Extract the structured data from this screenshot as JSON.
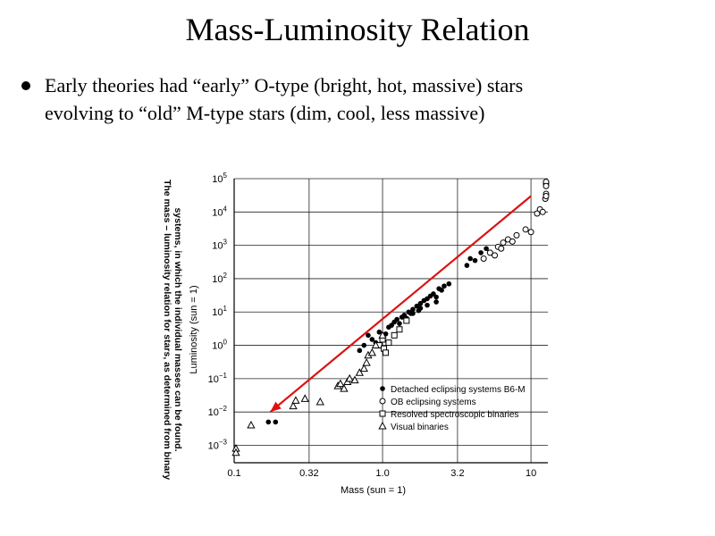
{
  "slide": {
    "title": "Mass-Luminosity Relation",
    "bullet_line1": "Early theories had “early” O-type (bright, hot, massive) stars",
    "bullet_line2": "evolving to “old” M-type stars  (dim, cool, less massive)"
  },
  "chart_data": {
    "type": "scatter",
    "title": "",
    "xlabel": "Mass (sun = 1)",
    "ylabel": "Luminosity (sun = 1)",
    "x_scale": "log",
    "y_scale": "log",
    "xlim": [
      0.1,
      13
    ],
    "ylim": [
      0.0003,
      100000
    ],
    "grid": true,
    "x_ticks": [
      {
        "value": 0.1,
        "label": "0.1"
      },
      {
        "value": 0.32,
        "label": "0.32"
      },
      {
        "value": 1.0,
        "label": "1.0"
      },
      {
        "value": 3.2,
        "label": "3.2"
      },
      {
        "value": 10,
        "label": "10"
      }
    ],
    "y_ticks": [
      {
        "value": 100000,
        "base": "10",
        "exp": "5"
      },
      {
        "value": 10000,
        "base": "10",
        "exp": "4"
      },
      {
        "value": 1000,
        "base": "10",
        "exp": "3"
      },
      {
        "value": 100,
        "base": "10",
        "exp": "2"
      },
      {
        "value": 10,
        "base": "10",
        "exp": "1"
      },
      {
        "value": 1,
        "base": "10",
        "exp": "0"
      },
      {
        "value": 0.1,
        "base": "10",
        "exp": "−1"
      },
      {
        "value": 0.01,
        "base": "10",
        "exp": "−2"
      },
      {
        "value": 0.001,
        "base": "10",
        "exp": "−3"
      }
    ],
    "caption": "The mass – luminosity relation for stars, as determined from binary systems, in which the individual masses can be found.",
    "legend_position": "bottom-right",
    "series": [
      {
        "name": "Detached eclipsing systems B6-M",
        "marker": "filled-circle",
        "points": [
          [
            0.17,
            0.005
          ],
          [
            0.19,
            0.005
          ],
          [
            0.7,
            0.7
          ],
          [
            0.75,
            1.0
          ],
          [
            0.8,
            2.0
          ],
          [
            0.85,
            1.5
          ],
          [
            0.9,
            1.2
          ],
          [
            0.95,
            2.5
          ],
          [
            1.0,
            1.8
          ],
          [
            1.05,
            2.2
          ],
          [
            1.1,
            3.5
          ],
          [
            1.15,
            4.0
          ],
          [
            1.2,
            5.0
          ],
          [
            1.25,
            6.0
          ],
          [
            1.3,
            4.5
          ],
          [
            1.35,
            7.0
          ],
          [
            1.4,
            8.0
          ],
          [
            1.45,
            6.5
          ],
          [
            1.5,
            10
          ],
          [
            1.55,
            9
          ],
          [
            1.6,
            12
          ],
          [
            1.7,
            15
          ],
          [
            1.75,
            11
          ],
          [
            1.8,
            18
          ],
          [
            1.9,
            22
          ],
          [
            2.0,
            25
          ],
          [
            2.1,
            30
          ],
          [
            2.2,
            35
          ],
          [
            2.3,
            28
          ],
          [
            2.4,
            50
          ],
          [
            2.5,
            45
          ],
          [
            2.6,
            60
          ],
          [
            2.8,
            70
          ],
          [
            2.3,
            20
          ],
          [
            2.0,
            16
          ],
          [
            1.8,
            13
          ],
          [
            1.6,
            9
          ],
          [
            3.7,
            250
          ],
          [
            3.9,
            400
          ],
          [
            4.2,
            350
          ],
          [
            4.6,
            600
          ],
          [
            5.0,
            800
          ]
        ]
      },
      {
        "name": "OB eclipsing systems",
        "marker": "open-circle",
        "points": [
          [
            4.8,
            400
          ],
          [
            5.3,
            600
          ],
          [
            5.7,
            500
          ],
          [
            6.0,
            900
          ],
          [
            6.3,
            800
          ],
          [
            6.5,
            1200
          ],
          [
            7.0,
            1500
          ],
          [
            7.5,
            1300
          ],
          [
            8.0,
            2000
          ],
          [
            9.2,
            3000
          ],
          [
            10.0,
            2500
          ],
          [
            11.0,
            9000
          ],
          [
            11.5,
            12000
          ],
          [
            12.0,
            10000
          ],
          [
            12.5,
            25000
          ],
          [
            13.0,
            35000
          ],
          [
            13.3,
            30000
          ],
          [
            14.0,
            70000
          ],
          [
            14.5,
            80000
          ],
          [
            15.5,
            60000
          ]
        ]
      },
      {
        "name": "Resolved spectroscopic binaries",
        "marker": "open-square",
        "points": [
          [
            0.95,
            1.0
          ],
          [
            1.0,
            1.5
          ],
          [
            1.02,
            0.8
          ],
          [
            1.05,
            0.6
          ],
          [
            1.1,
            1.2
          ],
          [
            1.2,
            2.0
          ],
          [
            1.3,
            3.0
          ],
          [
            1.45,
            5.5
          ]
        ]
      },
      {
        "name": "Visual binaries",
        "marker": "open-triangle",
        "points": [
          [
            0.1,
            0.0008
          ],
          [
            0.1,
            0.0006
          ],
          [
            0.13,
            0.004
          ],
          [
            0.25,
            0.015
          ],
          [
            0.26,
            0.022
          ],
          [
            0.3,
            0.025
          ],
          [
            0.38,
            0.02
          ],
          [
            0.5,
            0.06
          ],
          [
            0.52,
            0.07
          ],
          [
            0.55,
            0.05
          ],
          [
            0.58,
            0.08
          ],
          [
            0.6,
            0.1
          ],
          [
            0.65,
            0.09
          ],
          [
            0.7,
            0.15
          ],
          [
            0.75,
            0.2
          ],
          [
            0.78,
            0.3
          ],
          [
            0.8,
            0.5
          ],
          [
            0.85,
            0.6
          ],
          [
            0.9,
            1.0
          ],
          [
            1.0,
            2.0
          ]
        ]
      }
    ],
    "annotation_arrow": {
      "from": [
        10,
        30000
      ],
      "to": [
        0.175,
        0.01
      ],
      "color": "#dd1111"
    }
  }
}
